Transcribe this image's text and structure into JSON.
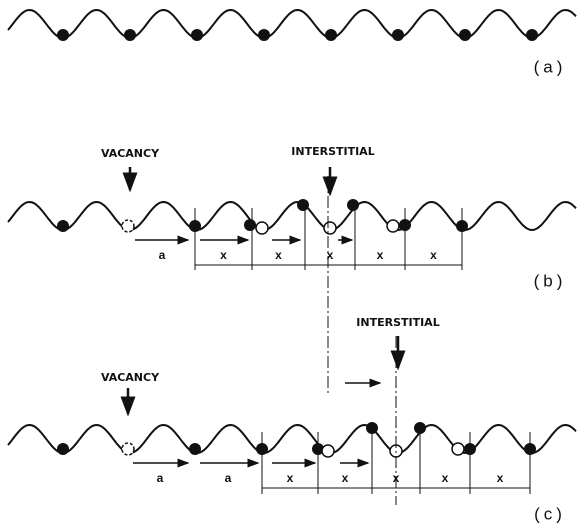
{
  "panels": [
    {
      "label": "(a)"
    },
    {
      "label": "(b)",
      "vacancy": "VACANCY",
      "interstitial": "INTERSTITIAL",
      "spacings": [
        "a"
      ],
      "displacements": [
        "x",
        "x",
        "x",
        "x",
        "x"
      ]
    },
    {
      "label": "(c)",
      "vacancy": "VACANCY",
      "interstitial": "INTERSTITIAL",
      "spacings": [
        "a",
        "a"
      ],
      "displacements": [
        "x",
        "x",
        "x",
        "x",
        "x"
      ]
    }
  ]
}
